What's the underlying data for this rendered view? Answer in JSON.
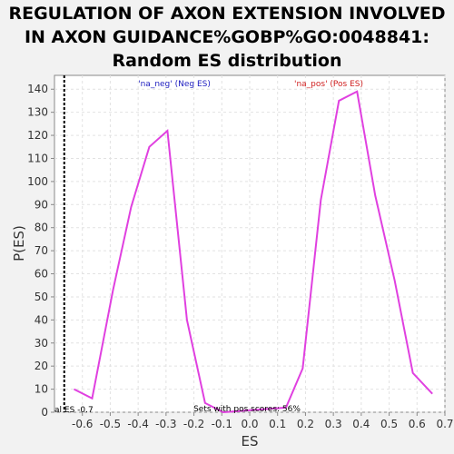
{
  "chart_data": {
    "type": "line",
    "title_lines": [
      "REGULATION OF AXON EXTENSION INVOLVED",
      "IN AXON GUIDANCE%GOBP%GO:0048841:",
      "Random ES distribution"
    ],
    "xlabel": "ES",
    "ylabel": "P(ES)",
    "xlim": [
      -0.7,
      0.7
    ],
    "ylim": [
      0,
      146
    ],
    "x_ticks": [
      "-0.6",
      "-0.5",
      "-0.4",
      "-0.3",
      "-0.2",
      "-0.1",
      "0.0",
      "0.1",
      "0.2",
      "0.3",
      "0.4",
      "0.5",
      "0.6",
      "0.7"
    ],
    "y_ticks": [
      "0",
      "10",
      "20",
      "30",
      "40",
      "50",
      "60",
      "70",
      "80",
      "90",
      "100",
      "110",
      "120",
      "130",
      "140"
    ],
    "grid": true,
    "series": [
      {
        "color": "#e040e0",
        "x": [
          -0.63,
          -0.565,
          -0.49,
          -0.425,
          -0.36,
          -0.295,
          -0.225,
          -0.16,
          -0.095,
          0.13,
          0.19,
          0.255,
          0.32,
          0.385,
          0.45,
          0.52,
          0.585,
          0.655
        ],
        "y": [
          10,
          6,
          53,
          89,
          115,
          122,
          40,
          4,
          0,
          2,
          19,
          92,
          135,
          139,
          94,
          57,
          17,
          8
        ]
      }
    ],
    "actual_es": {
      "x": -0.665,
      "label": "al ES -0.7"
    },
    "legend_neg": "'na_neg' (Neg ES)",
    "legend_pos": "'na_pos' (Pos ES)",
    "legend_neg_color": "#2020c0",
    "legend_pos_color": "#d02020",
    "annotation": "Sets with pos scores: 56%"
  }
}
